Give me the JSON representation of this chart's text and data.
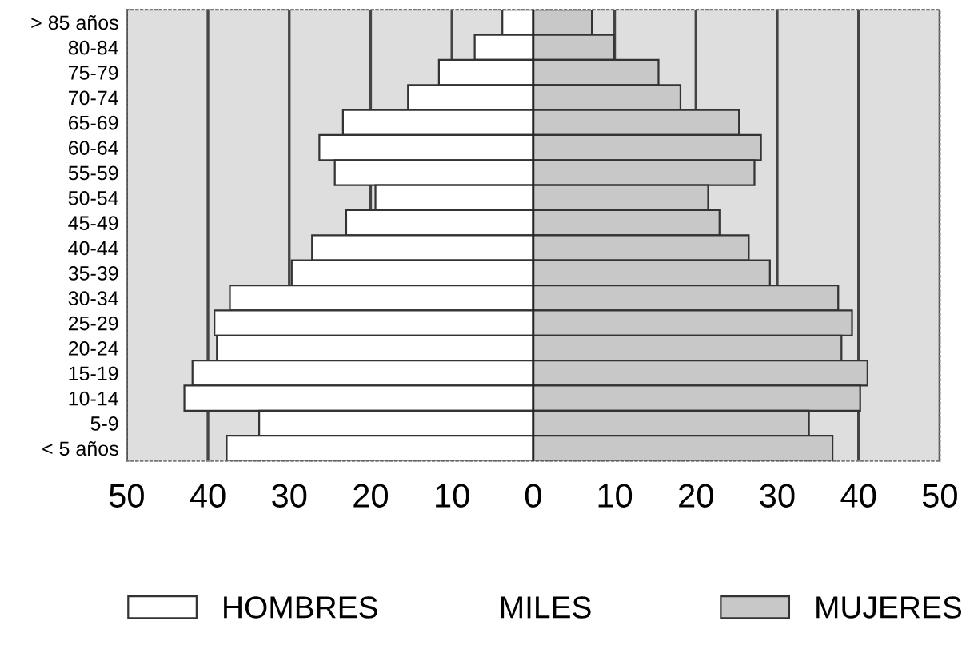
{
  "chart_data": {
    "type": "bar",
    "orientation": "horizontal",
    "xlabel": "MILES",
    "categories": [
      "> 85 años",
      "80-84",
      "75-79",
      "70-74",
      "65-69",
      "60-64",
      "55-59",
      "50-54",
      "45-49",
      "40-44",
      "35-39",
      "30-34",
      "25-29",
      "20-24",
      "15-19",
      "10-14",
      "5-9",
      "< 5 años"
    ],
    "series": [
      {
        "name": "HOMBRES",
        "color": "#ffffff",
        "values": [
          -3.8,
          -7.2,
          -11.6,
          -15.4,
          -23.4,
          -26.3,
          -24.4,
          -19.4,
          -23.0,
          -27.2,
          -29.7,
          -37.3,
          -39.2,
          -38.9,
          -41.9,
          -42.9,
          -33.7,
          -37.7
        ]
      },
      {
        "name": "MUJERES",
        "color": "#c8c8c8",
        "values": [
          7.2,
          9.9,
          15.4,
          18.1,
          25.3,
          28.0,
          27.2,
          21.5,
          22.9,
          26.5,
          29.1,
          37.5,
          39.2,
          37.9,
          41.1,
          40.2,
          33.9,
          36.8
        ]
      }
    ],
    "xlim": [
      -50,
      50
    ],
    "xticks": [
      {
        "value": -50,
        "label": "50"
      },
      {
        "value": -40,
        "label": "40"
      },
      {
        "value": -30,
        "label": "30"
      },
      {
        "value": -20,
        "label": "20"
      },
      {
        "value": -10,
        "label": "10"
      },
      0,
      10,
      20,
      30,
      40,
      50
    ],
    "grid": "x",
    "legend": "bottom",
    "stacked": true
  }
}
